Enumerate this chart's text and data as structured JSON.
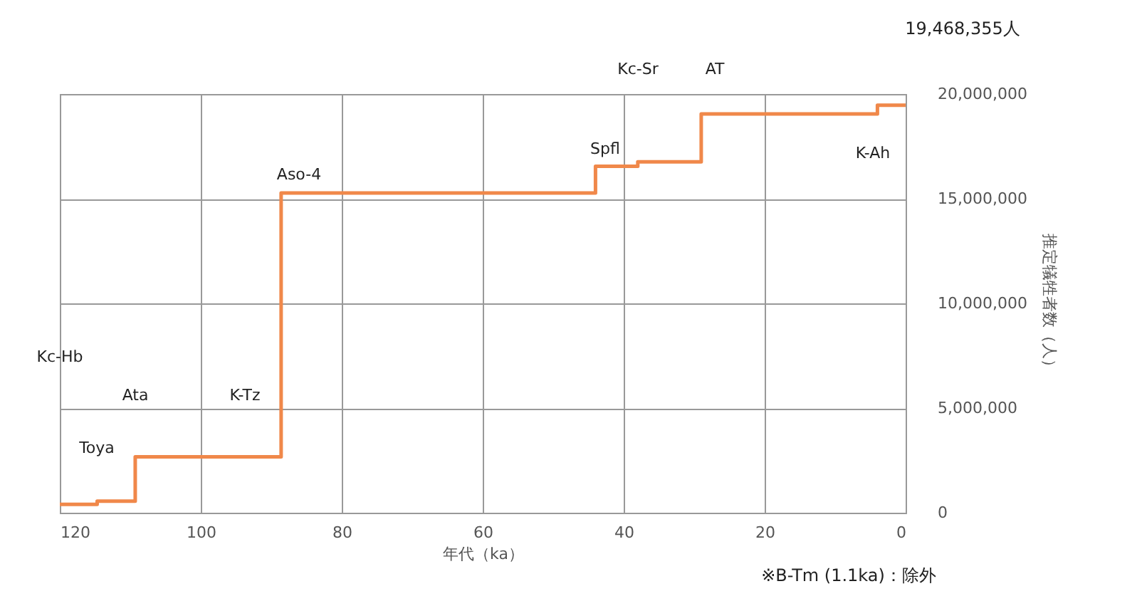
{
  "chart_data": {
    "type": "step",
    "xlabel": "年代（ka）",
    "ylabel": "推定犠牲者数（人）",
    "x": [
      120,
      114.7,
      109.3,
      88.6,
      44,
      38,
      29,
      4,
      0
    ],
    "series": [
      {
        "color": "#f0884a",
        "values": [
          400000,
          550000,
          2670000,
          15270000,
          16550000,
          16760000,
          19050000,
          19468355,
          19468355
        ]
      }
    ],
    "xlim": [
      120,
      0
    ],
    "xticks": [
      120,
      100,
      80,
      60,
      40,
      20,
      0
    ],
    "ylim": [
      0,
      20000000
    ],
    "yticks": [
      0,
      {
        "value": 5000000,
        "label": "5,000,000"
      },
      {
        "value": 10000000,
        "label": "10,000,000"
      },
      {
        "value": 15000000,
        "label": "15,000,000"
      },
      {
        "value": 20000000,
        "label": "20,000,000"
      }
    ],
    "grid": true,
    "marker": "none",
    "line_style": "solid",
    "annotations": [
      "19,468,355人",
      "※B-Tm (1.1ka)：除外",
      "Kc-Hb",
      "Toya",
      "Ata",
      "K-Tz",
      "Aso-4",
      "Spfl",
      "Kc-Sr",
      "AT",
      "K-Ah"
    ]
  }
}
